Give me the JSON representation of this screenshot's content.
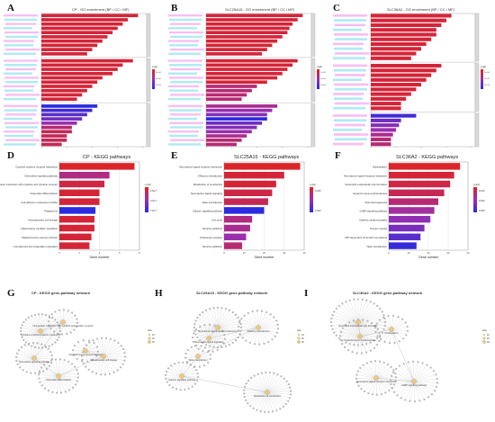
{
  "figure": {
    "letters": [
      "A",
      "B",
      "C",
      "D",
      "E",
      "F",
      "G",
      "H",
      "I"
    ]
  },
  "titles": {
    "A": "CP - GO enrichment (BP / CC / MF)",
    "B": "SLC25A15 - GO enrichment (BP / CC / MF)",
    "C": "SLC36A2 - GO enrichment (BP / CC / MF)",
    "D": "CP - KEGG pathways",
    "E": "SLC25A15 - KEGG pathways",
    "F": "SLC36A2 - KEGG pathways",
    "G": "CP - KEGG gene-pathway network",
    "H": "SLC25A15 - KEGG gene-pathway network",
    "I": "SLC36A2 - KEGG gene-pathway network"
  },
  "legend": {
    "padj": "p.adj",
    "size": "size",
    "A": [
      "2e-04",
      "4e-04",
      "6e-04"
    ],
    "B": [
      "1e-04",
      "2e-04",
      "3e-04"
    ],
    "C": [
      "1e-04",
      "2e-04",
      "3e-04"
    ],
    "D": [
      "2.5e-7",
      "5.0e-7",
      "7.5e-7"
    ],
    "E": [
      "0.010",
      "0.020"
    ],
    "F": [
      "0.010",
      "0.020",
      "0.030"
    ],
    "sizeVals": [
      "10",
      "20",
      "30"
    ]
  },
  "colors": {
    "high": "#e2231a",
    "mid": "#9b2fae",
    "low": "#2b2bdf"
  },
  "chart_data": [
    {
      "type": "bar",
      "panel": "D",
      "xlabel": "Gene number",
      "xlim": [
        0,
        8
      ],
      "categories": [
        "Cytokine-cytokine receptor interaction",
        "Chemokine signaling pathway",
        "Viral protein interaction with cytokine and cytokine receptor",
        "Osteoclast differentiation",
        "Cell adhesion molecules (CAMs)",
        "Phagosome",
        "Hematopoietic cell lineage",
        "Inflammatory mediator regulation",
        "Staphylococcus aureus infection",
        "Complement and coagulation cascades"
      ],
      "values": [
        7.5,
        5.0,
        4.5,
        4.0,
        4.0,
        3.6,
        3.5,
        3.5,
        3.2,
        3.0
      ],
      "padj_rank": [
        0.05,
        0.35,
        0.15,
        0.1,
        0.1,
        1.0,
        0.1,
        0.1,
        0.1,
        0.1
      ]
    },
    {
      "type": "bar",
      "panel": "E",
      "xlabel": "Gene number",
      "xlim": [
        0,
        40
      ],
      "categories": [
        "Neuroactive ligand-receptor interaction",
        "Olfactory transduction",
        "Metabolism of xenobiotics",
        "Neuroactive ligand signaling",
        "Taste transduction",
        "Calcium signaling pathway",
        "Cell cycle",
        "Nicotine addiction",
        "Cholinergic synapse",
        "Nicotine addiction"
      ],
      "values": [
        38,
        30,
        26,
        24,
        22,
        20,
        14,
        13,
        11,
        9
      ],
      "padj_rank": [
        0.05,
        0.1,
        0.1,
        0.15,
        0.2,
        1.0,
        0.35,
        0.4,
        0.5,
        0.3
      ]
    },
    {
      "type": "bar",
      "panel": "F",
      "xlabel": "Gene number",
      "xlim": [
        0,
        40
      ],
      "categories": [
        "Nucleoplasm",
        "Neuroactive ligand-receptor interaction",
        "Neutrophil extracellular trap formation",
        "Systemic lupus erythematosus",
        "Viral carcinogenesis",
        "cAMP signaling pathway",
        "Diabetic cardiomyopathy",
        "Oocyte meiosis",
        "ATP-dependent chromatin remodeling",
        "Taste transduction"
      ],
      "values": [
        36,
        33,
        31,
        28,
        25,
        23,
        21,
        18,
        16,
        14
      ],
      "padj_rank": [
        0.05,
        0.1,
        0.15,
        0.2,
        0.3,
        0.45,
        0.55,
        0.65,
        0.8,
        0.95
      ]
    },
    {
      "type": "bar",
      "panel": "A",
      "xlim": [
        0,
        10
      ],
      "values": [
        9.5,
        8.5,
        8,
        7.5,
        7,
        6.5,
        6,
        5.5,
        5,
        4.5,
        9,
        8,
        7.5,
        7,
        6,
        5.5,
        5,
        4.5,
        4,
        3.5,
        5.5,
        5,
        4.5,
        4,
        3.5,
        3,
        3,
        2.5,
        2.5,
        2
      ],
      "padj_rank": [
        0.1,
        0.1,
        0.1,
        0.1,
        0.1,
        0.1,
        0.1,
        0.1,
        0.1,
        0.1,
        0.1,
        0.1,
        0.1,
        0.1,
        0.1,
        0.1,
        0.1,
        0.1,
        0.1,
        0.1,
        1,
        0.9,
        0.8,
        0.7,
        0.5,
        0.3,
        0.2,
        0.2,
        0.2,
        0.2
      ]
    },
    {
      "type": "bar",
      "panel": "B",
      "xlim": [
        0,
        10
      ],
      "values": [
        9.5,
        9,
        8.5,
        8.2,
        8,
        7.5,
        7,
        6.5,
        6,
        5.5,
        9,
        8.5,
        8,
        7.5,
        7,
        6,
        5,
        4.5,
        4,
        3.5,
        7,
        6.5,
        6,
        6,
        5.5,
        5,
        4.5,
        4,
        3.5,
        3
      ],
      "padj_rank": [
        0.1,
        0.1,
        0.1,
        0.1,
        0.1,
        0.1,
        0.1,
        0.1,
        0.1,
        0.1,
        0.1,
        0.1,
        0.1,
        0.1,
        0.1,
        0.1,
        0.3,
        0.3,
        0.3,
        0.3,
        0.4,
        0.5,
        0.6,
        1,
        0.7,
        0.6,
        0.5,
        0.4,
        0.3,
        0.3
      ]
    },
    {
      "type": "bar",
      "panel": "C",
      "xlim": [
        0,
        10
      ],
      "values": [
        8,
        7.5,
        7,
        6.5,
        6.5,
        6,
        5.5,
        5,
        4.5,
        4,
        7,
        6.5,
        6,
        5.5,
        5,
        4.5,
        4,
        3.5,
        3,
        3,
        4.5,
        3,
        2.8,
        2.5,
        2.2,
        2,
        2
      ],
      "padj_rank": [
        0.1,
        0.1,
        0.1,
        0.1,
        0.1,
        0.1,
        0.1,
        0.1,
        0.1,
        0.1,
        0.1,
        0.1,
        0.1,
        0.1,
        0.1,
        0.1,
        0.1,
        0.1,
        0.1,
        0.1,
        0.9,
        0.7,
        0.6,
        0.5,
        0.4,
        0.3,
        0.3
      ]
    }
  ],
  "networks": {
    "G": [
      "Cytokine-cytokine receptor interaction",
      "Viral protein interaction with cytokine and cytokine receptor",
      "Chemokine signaling pathway",
      "Osteoclast differentiation",
      "Hematopoietic cell lineage",
      "Staphylococcus aureus infection"
    ],
    "H": [
      "Neuroactive ligand-receptor interaction",
      "Neuroactive ligand signaling",
      "Olfactory transduction",
      "Taste transduction",
      "Calcium signaling pathway",
      "Metabolism of xenobiotics"
    ],
    "I": [
      "Neutrophil extracellular trap formation",
      "Systemic lupus erythematosus",
      "Nucleoplasm",
      "cAMP signaling pathway",
      "Neuroactive ligand-receptor interaction"
    ]
  }
}
